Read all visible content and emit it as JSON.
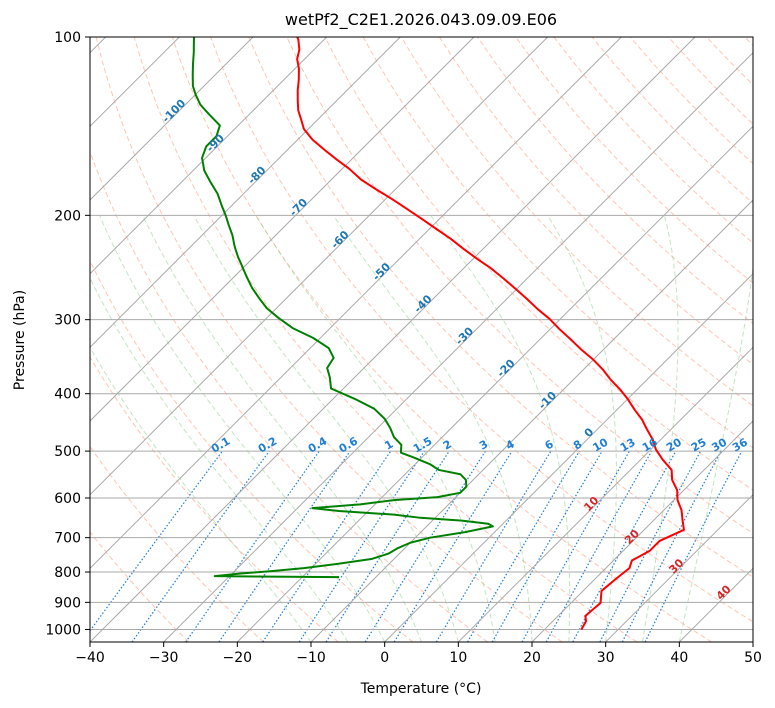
{
  "chart_data": {
    "type": "line",
    "subtype": "skew-T log-p diagram",
    "title": "wetPf2_C2E1.2026.043.09.09.E06",
    "xlabel": "Temperature (°C)",
    "ylabel": "Pressure (hPa)",
    "xlim": [
      -40,
      50
    ],
    "ylim": [
      1050,
      100
    ],
    "y_scale": "log",
    "grid": true,
    "x_ticks": [
      -40,
      -30,
      -20,
      -10,
      0,
      10,
      20,
      30,
      40,
      50
    ],
    "y_ticks": [
      100,
      200,
      300,
      400,
      500,
      600,
      700,
      800,
      900,
      1000
    ],
    "colors": {
      "temperature": "#ff0000",
      "dewpoint": "#008000",
      "isotherm": "#aaaaaa",
      "dry_adiabat": "#ff9f80",
      "moist_adiabat": "#90d090",
      "mixing_ratio": "#1e7fd6",
      "isotherm_label": "#1f77b4",
      "dry_adiabat_label": "#d62728"
    },
    "isotherm_labels": [
      {
        "text": "-100",
        "temperature": -100
      },
      {
        "text": "-90",
        "temperature": -90
      },
      {
        "text": "-80",
        "temperature": -80
      },
      {
        "text": "-70",
        "temperature": -70
      },
      {
        "text": "-60",
        "temperature": -60
      },
      {
        "text": "-50",
        "temperature": -50
      },
      {
        "text": "-40",
        "temperature": -40
      },
      {
        "text": "-30",
        "temperature": -30
      },
      {
        "text": "-20",
        "temperature": -20
      },
      {
        "text": "-10",
        "temperature": -10
      },
      {
        "text": "0",
        "temperature": 0
      }
    ],
    "dry_adiabat_labels": [
      {
        "text": "10",
        "temperature": 10
      },
      {
        "text": "20",
        "temperature": 20
      },
      {
        "text": "30",
        "temperature": 30
      },
      {
        "text": "40",
        "temperature": 40
      }
    ],
    "mixing_ratio_labels": [
      "0.1",
      "0.2",
      "0.4",
      "0.6",
      "1",
      "1.5",
      "2",
      "3",
      "4",
      "6",
      "8",
      "10",
      "13",
      "16",
      "20",
      "25",
      "30",
      "36"
    ],
    "series": [
      {
        "name": "temperature",
        "color": "#ff0000",
        "points": [
          [
            1000,
            25.0
          ],
          [
            968,
            24.5
          ],
          [
            949,
            23.7
          ],
          [
            902,
            24.0
          ],
          [
            861,
            22.5
          ],
          [
            824,
            22.8
          ],
          [
            788,
            23.2
          ],
          [
            765,
            22.5
          ],
          [
            737,
            23.6
          ],
          [
            709,
            23.6
          ],
          [
            679,
            25.4
          ],
          [
            654,
            23.9
          ],
          [
            629,
            22.4
          ],
          [
            605,
            20.5
          ],
          [
            582,
            19.1
          ],
          [
            559,
            17.0
          ],
          [
            538,
            15.6
          ],
          [
            517,
            13.0
          ],
          [
            497,
            10.7
          ],
          [
            478,
            8.9
          ],
          [
            460,
            6.8
          ],
          [
            442,
            4.7
          ],
          [
            425,
            2.3
          ],
          [
            409,
            0.1
          ],
          [
            393,
            -2.4
          ],
          [
            379,
            -4.9
          ],
          [
            364,
            -7.4
          ],
          [
            350,
            -10.1
          ],
          [
            337,
            -13.0
          ],
          [
            324,
            -15.8
          ],
          [
            311,
            -18.8
          ],
          [
            299,
            -21.5
          ],
          [
            288,
            -24.4
          ],
          [
            277,
            -27.2
          ],
          [
            266,
            -30.2
          ],
          [
            256,
            -33.1
          ],
          [
            246,
            -36.2
          ],
          [
            237,
            -39.4
          ],
          [
            228,
            -42.6
          ],
          [
            219,
            -45.8
          ],
          [
            211,
            -49.0
          ],
          [
            203,
            -52.3
          ],
          [
            195,
            -55.8
          ],
          [
            188,
            -59.0
          ],
          [
            181,
            -62.5
          ],
          [
            174,
            -66.0
          ],
          [
            167,
            -69.0
          ],
          [
            161,
            -72.0
          ],
          [
            155,
            -75.0
          ],
          [
            149,
            -78.0
          ],
          [
            143,
            -80.6
          ],
          [
            138,
            -82.2
          ],
          [
            133,
            -83.9
          ],
          [
            128,
            -85.3
          ],
          [
            123,
            -86.7
          ],
          [
            118,
            -88.0
          ],
          [
            113,
            -89.5
          ],
          [
            109,
            -91.0
          ],
          [
            105,
            -92.0
          ],
          [
            101,
            -93.5
          ],
          [
            100,
            -94.0
          ]
        ]
      },
      {
        "name": "dewpoint",
        "color": "#008000",
        "points": [
          [
            816,
            -15.0
          ],
          [
            813,
            -32.0
          ],
          [
            805,
            -29.0
          ],
          [
            797,
            -25.0
          ],
          [
            788,
            -21.0
          ],
          [
            775,
            -17.0
          ],
          [
            760,
            -13.0
          ],
          [
            745,
            -11.5
          ],
          [
            730,
            -11.0
          ],
          [
            714,
            -10.0
          ],
          [
            700,
            -8.0
          ],
          [
            685,
            -4.0
          ],
          [
            670,
            -1.0
          ],
          [
            663,
            -2.0
          ],
          [
            655,
            -6.0
          ],
          [
            648,
            -12.0
          ],
          [
            640,
            -16.0
          ],
          [
            631,
            -24.0
          ],
          [
            624,
            -28.0
          ],
          [
            615,
            -22.0
          ],
          [
            605,
            -18.0
          ],
          [
            598,
            -12.5
          ],
          [
            588,
            -10.0
          ],
          [
            574,
            -10.0
          ],
          [
            559,
            -11.0
          ],
          [
            547,
            -12.5
          ],
          [
            538,
            -16.0
          ],
          [
            526,
            -18.0
          ],
          [
            513,
            -21.0
          ],
          [
            503,
            -23.5
          ],
          [
            488,
            -24.5
          ],
          [
            474,
            -26.5
          ],
          [
            457,
            -28.3
          ],
          [
            441,
            -30.3
          ],
          [
            424,
            -33.1
          ],
          [
            408,
            -37.1
          ],
          [
            392,
            -41.7
          ],
          [
            376,
            -43.3
          ],
          [
            362,
            -45.0
          ],
          [
            348,
            -45.5
          ],
          [
            335,
            -47.5
          ],
          [
            322,
            -51.0
          ],
          [
            310,
            -55.1
          ],
          [
            298,
            -58.4
          ],
          [
            287,
            -61.3
          ],
          [
            276,
            -63.7
          ],
          [
            265,
            -66.1
          ],
          [
            254,
            -68.3
          ],
          [
            244,
            -70.3
          ],
          [
            235,
            -72.2
          ],
          [
            226,
            -74.0
          ],
          [
            216,
            -75.9
          ],
          [
            208,
            -77.7
          ],
          [
            200,
            -79.5
          ],
          [
            192,
            -81.5
          ],
          [
            184,
            -83.5
          ],
          [
            176,
            -86.0
          ],
          [
            168,
            -88.5
          ],
          [
            160,
            -90.5
          ],
          [
            153,
            -91.5
          ],
          [
            147,
            -91.5
          ],
          [
            141,
            -92.5
          ],
          [
            135,
            -95.5
          ],
          [
            130,
            -98.0
          ],
          [
            125,
            -100.0
          ],
          [
            121,
            -101.5
          ],
          [
            116,
            -103.0
          ],
          [
            111,
            -104.5
          ],
          [
            106,
            -106.0
          ],
          [
            103,
            -107.0
          ],
          [
            100,
            -108.0
          ]
        ]
      }
    ]
  }
}
